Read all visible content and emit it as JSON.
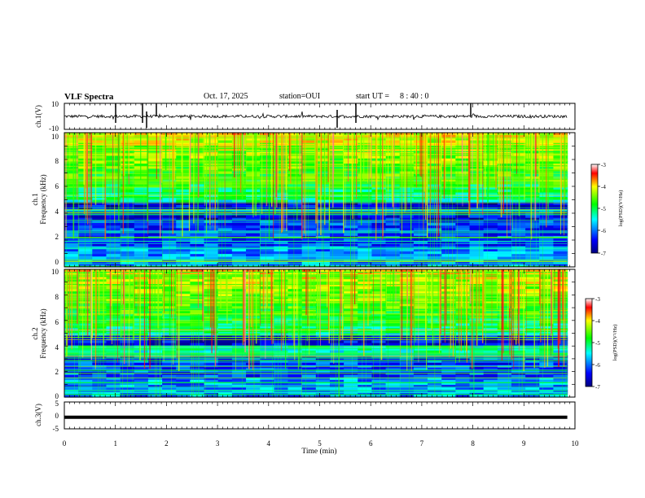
{
  "header": {
    "title": "VLF Spectra",
    "date": "Oct. 17, 2025",
    "station": "station=OUI",
    "start_label": "start  UT =",
    "start_time": "8 : 40 : 0"
  },
  "chart_data": [
    {
      "type": "line",
      "name": "ch1-waveform",
      "ylabel": "ch.1(V)",
      "ylim": [
        -10,
        10
      ],
      "ytick_labels": [
        "10",
        "-10"
      ],
      "baseline": 0,
      "x_range": [
        0,
        9.85
      ]
    },
    {
      "type": "heatmap",
      "name": "ch1-spectrogram",
      "ylabel_line1": "ch.1",
      "ylabel_line2": "Frequency (kHz)",
      "ylim": [
        0,
        10
      ],
      "yticks": [
        "0",
        "2",
        "4",
        "6",
        "8",
        "10"
      ],
      "x_range": [
        0,
        9.85
      ],
      "colorbar": {
        "label": "log(PSD)(V²/Hz)",
        "ticks": [
          "-3",
          "-4",
          "-5",
          "-6",
          "-7"
        ],
        "range": [
          -7,
          -3
        ]
      }
    },
    {
      "type": "heatmap",
      "name": "ch2-spectrogram",
      "ylabel_line1": "ch.2",
      "ylabel_line2": "Frequency (kHz)",
      "ylim": [
        0,
        10
      ],
      "yticks": [
        "0",
        "2",
        "4",
        "6",
        "8",
        "10"
      ],
      "x_range": [
        0,
        9.85
      ],
      "colorbar": {
        "label": "log(PSD)(V²/Hz)",
        "ticks": [
          "-3",
          "-4",
          "-5",
          "-6",
          "-7"
        ],
        "range": [
          -7,
          -3
        ]
      }
    },
    {
      "type": "line",
      "name": "ch3-waveform",
      "ylabel": "ch.3(V)",
      "ylim": [
        -5,
        5
      ],
      "ytick_labels": [
        "5",
        "0",
        "-5"
      ],
      "level": -0.7,
      "x_range": [
        0,
        9.85
      ]
    }
  ],
  "xaxis": {
    "label": "Time (min)",
    "ticks": [
      "0",
      "1",
      "2",
      "3",
      "4",
      "5",
      "6",
      "7",
      "8",
      "9",
      "10"
    ],
    "xlim": [
      0,
      10
    ]
  },
  "colors": {
    "colormap": [
      "#00007f",
      "#0000ff",
      "#00ffff",
      "#00ff00",
      "#ffff00",
      "#ff0000",
      "#ffffff"
    ]
  }
}
